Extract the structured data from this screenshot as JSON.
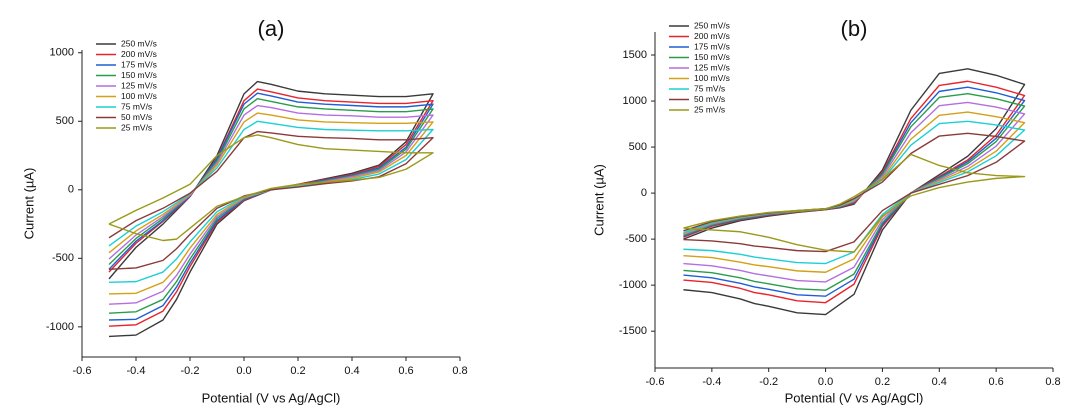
{
  "chart_data": [
    {
      "type": "line",
      "title": "(a)",
      "xlabel": "Potential (V vs Ag/AgCl)",
      "ylabel": "Current (µA)",
      "legend": "upper left",
      "grid": false,
      "xlim": [
        -0.6,
        0.8
      ],
      "ylim": [
        -1220,
        1020
      ],
      "xticks": [
        -0.6,
        -0.4,
        -0.2,
        {
          "value": 0,
          "label": "0.0"
        },
        0.2,
        0.4,
        0.6,
        0.8
      ],
      "yticks": [
        -1000,
        -500,
        0,
        500,
        1000
      ],
      "x": [
        -0.5,
        -0.4,
        -0.3,
        -0.2,
        -0.1,
        0,
        0.05,
        0.1,
        0.2,
        0.3,
        0.4,
        0.5,
        0.6,
        0.7,
        0.6,
        0.5,
        0.4,
        0.3,
        0.2,
        0.1,
        0,
        -0.1,
        -0.2,
        -0.25,
        -0.3,
        -0.4,
        -0.5
      ],
      "series": [
        {
          "name": "250 mV/s",
          "color": "#3a3a3a",
          "values": [
            -650,
            -420,
            -250,
            -50,
            250,
            700,
            790,
            770,
            720,
            700,
            690,
            680,
            680,
            700,
            350,
            180,
            120,
            80,
            40,
            0,
            -80,
            -250,
            -600,
            -800,
            -950,
            -1060,
            -1070
          ]
        },
        {
          "name": "200 mV/s",
          "color": "#e8232a",
          "values": [
            -600,
            -390,
            -230,
            -50,
            230,
            650,
            735,
            715,
            670,
            650,
            640,
            630,
            630,
            650,
            330,
            170,
            110,
            75,
            40,
            0,
            -75,
            -235,
            -560,
            -745,
            -885,
            -985,
            -995
          ]
        },
        {
          "name": "175 mV/s",
          "color": "#1f5fd6",
          "values": [
            -580,
            -375,
            -225,
            -45,
            225,
            625,
            705,
            685,
            640,
            625,
            615,
            605,
            605,
            625,
            310,
            160,
            105,
            70,
            35,
            0,
            -70,
            -225,
            -535,
            -710,
            -845,
            -945,
            -950
          ]
        },
        {
          "name": "150 mV/s",
          "color": "#2a9d4a",
          "values": [
            -545,
            -355,
            -210,
            -40,
            210,
            590,
            665,
            645,
            605,
            590,
            580,
            570,
            570,
            590,
            295,
            150,
            100,
            65,
            35,
            0,
            -65,
            -210,
            -505,
            -670,
            -800,
            -890,
            -900
          ]
        },
        {
          "name": "125 mV/s",
          "color": "#b36fe0",
          "values": [
            -505,
            -330,
            -195,
            -40,
            195,
            545,
            615,
            600,
            560,
            545,
            540,
            530,
            530,
            545,
            275,
            140,
            95,
            60,
            30,
            0,
            -60,
            -195,
            -470,
            -625,
            -740,
            -825,
            -835
          ]
        },
        {
          "name": "100 mV/s",
          "color": "#d4a017",
          "values": [
            -460,
            -300,
            -180,
            -35,
            180,
            495,
            560,
            545,
            510,
            495,
            490,
            485,
            485,
            495,
            250,
            130,
            85,
            55,
            30,
            0,
            -55,
            -180,
            -425,
            -570,
            -675,
            -755,
            -760
          ]
        },
        {
          "name": "75 mV/s",
          "color": "#1ccfd6",
          "values": [
            -410,
            -265,
            -160,
            -30,
            160,
            440,
            500,
            485,
            455,
            440,
            435,
            430,
            430,
            440,
            220,
            115,
            75,
            50,
            25,
            0,
            -50,
            -160,
            -380,
            -505,
            -600,
            -670,
            -675
          ]
        },
        {
          "name": "50 mV/s",
          "color": "#8b3a3a",
          "values": [
            -350,
            -225,
            -135,
            -25,
            135,
            380,
            425,
            415,
            390,
            380,
            375,
            365,
            365,
            380,
            190,
            95,
            65,
            45,
            20,
            0,
            -45,
            -135,
            -325,
            -430,
            -515,
            -570,
            -580
          ]
        },
        {
          "name": "25 mV/s",
          "color": "#9a9a1a",
          "values": [
            -250,
            -150,
            -60,
            40,
            250,
            380,
            400,
            380,
            330,
            300,
            290,
            280,
            270,
            270,
            150,
            90,
            70,
            55,
            40,
            10,
            -50,
            -120,
            -280,
            -360,
            -370,
            -320,
            -250
          ]
        }
      ]
    },
    {
      "type": "line",
      "title": "(b)",
      "xlabel": "Potential (V vs Ag/AgCl)",
      "ylabel": "Current (µA)",
      "legend": "upper left",
      "grid": false,
      "xlim": [
        -0.6,
        0.8
      ],
      "ylim": [
        -1900,
        1750
      ],
      "xticks": [
        -0.6,
        -0.4,
        -0.2,
        {
          "value": 0,
          "label": "0.0"
        },
        0.2,
        0.4,
        0.6,
        0.8
      ],
      "yticks": [
        -1500,
        -1000,
        -500,
        0,
        500,
        1000,
        1500
      ],
      "x": [
        -0.5,
        -0.4,
        -0.3,
        -0.2,
        -0.1,
        0,
        0.05,
        0.1,
        0.2,
        0.3,
        0.4,
        0.5,
        0.6,
        0.7,
        0.6,
        0.5,
        0.4,
        0.3,
        0.2,
        0.1,
        0,
        -0.1,
        -0.2,
        -0.25,
        -0.3,
        -0.4,
        -0.5
      ],
      "series": [
        {
          "name": "250 mV/s",
          "color": "#3a3a3a",
          "values": [
            -500,
            -380,
            -300,
            -250,
            -210,
            -180,
            -160,
            -120,
            250,
            900,
            1300,
            1350,
            1280,
            1180,
            700,
            400,
            200,
            0,
            -400,
            -1100,
            -1320,
            -1300,
            -1230,
            -1200,
            -1150,
            -1080,
            -1050
          ]
        },
        {
          "name": "200 mV/s",
          "color": "#e8232a",
          "values": [
            -480,
            -360,
            -290,
            -240,
            -205,
            -180,
            -155,
            -110,
            225,
            810,
            1170,
            1215,
            1150,
            1060,
            630,
            360,
            180,
            0,
            -360,
            -990,
            -1190,
            -1170,
            -1105,
            -1080,
            -1035,
            -970,
            -945
          ]
        },
        {
          "name": "175 mV/s",
          "color": "#1f5fd6",
          "values": [
            -470,
            -350,
            -285,
            -235,
            -200,
            -175,
            -150,
            -100,
            210,
            765,
            1105,
            1150,
            1090,
            1005,
            595,
            340,
            170,
            0,
            -340,
            -935,
            -1120,
            -1105,
            -1045,
            -1020,
            -980,
            -920,
            -890
          ]
        },
        {
          "name": "150 mV/s",
          "color": "#2a9d4a",
          "values": [
            -460,
            -345,
            -280,
            -230,
            -200,
            -175,
            -145,
            -95,
            200,
            720,
            1040,
            1080,
            1025,
            945,
            560,
            320,
            160,
            0,
            -320,
            -880,
            -1055,
            -1040,
            -985,
            -960,
            -920,
            -865,
            -840
          ]
        },
        {
          "name": "125 mV/s",
          "color": "#b36fe0",
          "values": [
            -450,
            -335,
            -270,
            -225,
            -195,
            -170,
            -140,
            -90,
            180,
            655,
            950,
            985,
            935,
            860,
            510,
            290,
            145,
            0,
            -290,
            -805,
            -965,
            -950,
            -900,
            -875,
            -840,
            -790,
            -765
          ]
        },
        {
          "name": "100 mV/s",
          "color": "#d4a017",
          "values": [
            -440,
            -325,
            -265,
            -220,
            -195,
            -170,
            -140,
            -80,
            160,
            585,
            845,
            880,
            830,
            765,
            455,
            260,
            130,
            0,
            -260,
            -715,
            -860,
            -845,
            -800,
            -780,
            -750,
            -700,
            -680
          ]
        },
        {
          "name": "75 mV/s",
          "color": "#1ccfd6",
          "values": [
            -430,
            -320,
            -260,
            -220,
            -190,
            -170,
            -135,
            -70,
            145,
            520,
            755,
            780,
            740,
            685,
            405,
            230,
            115,
            0,
            -230,
            -640,
            -765,
            -755,
            -715,
            -695,
            -665,
            -625,
            -610
          ]
        },
        {
          "name": "50 mV/s",
          "color": "#8b3a3a",
          "values": [
            -410,
            -310,
            -255,
            -215,
            -190,
            -170,
            -130,
            -60,
            120,
            430,
            620,
            650,
            615,
            565,
            335,
            190,
            95,
            0,
            -190,
            -530,
            -635,
            -625,
            -590,
            -575,
            -550,
            -520,
            -505
          ]
        },
        {
          "name": "25 mV/s",
          "color": "#9a9a1a",
          "values": [
            -380,
            -300,
            -250,
            -210,
            -190,
            -170,
            -120,
            -40,
            150,
            420,
            300,
            220,
            190,
            180,
            160,
            120,
            60,
            -30,
            -250,
            -640,
            -620,
            -560,
            -480,
            -450,
            -420,
            -400,
            -380
          ]
        }
      ]
    }
  ]
}
